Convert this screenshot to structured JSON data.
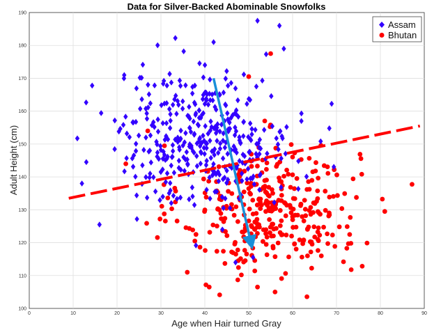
{
  "chart_data": {
    "type": "scatter",
    "title": "Data for Silver-Backed Abominable Snowfolks",
    "xlabel": "Age when Hair turned Gray",
    "ylabel": "Adult Height (cm)",
    "xlim": [
      0,
      90
    ],
    "ylim": [
      100,
      190
    ],
    "xticks": [
      "0",
      "10",
      "20",
      "30",
      "40",
      "50",
      "60",
      "70",
      "80",
      "90"
    ],
    "yticks": [
      "100",
      "110",
      "120",
      "130",
      "140",
      "150",
      "160",
      "170",
      "180",
      "190"
    ],
    "grid": true,
    "legend_position": "top-right",
    "series": [
      {
        "name": "Assam",
        "marker": "diamond",
        "color": "#3300ff",
        "cluster": {
          "x_mean": 40,
          "y_mean": 152,
          "x_sd": 10,
          "y_sd": 10,
          "n": 400
        },
        "points": [
          [
            12,
            138
          ],
          [
            13,
            144.5
          ],
          [
            16,
            125.5
          ],
          [
            52,
            187.5
          ],
          [
            57,
            186
          ],
          [
            58,
            179
          ],
          [
            42,
            181
          ],
          [
            51,
            115.5
          ],
          [
            47,
            114
          ],
          [
            44,
            124
          ],
          [
            62,
            157
          ]
        ]
      },
      {
        "name": "Bhutan",
        "marker": "circle",
        "color": "#ff0000",
        "cluster": {
          "x_mean": 55,
          "y_mean": 130,
          "x_sd": 10,
          "y_sd": 10,
          "n": 350
        },
        "points": [
          [
            81,
            129.5
          ],
          [
            55,
            177.5
          ],
          [
            50,
            170.5
          ],
          [
            52,
            106.5
          ],
          [
            56,
            105
          ],
          [
            41,
            106.5
          ],
          [
            27,
            154
          ],
          [
            73,
            122.5
          ],
          [
            36,
            111
          ],
          [
            22,
            144
          ]
        ]
      }
    ],
    "annotations": [
      {
        "type": "dashed-line",
        "color": "#ff0000",
        "from": [
          9,
          133.5
        ],
        "to": [
          89,
          155.5
        ]
      },
      {
        "type": "arrow",
        "color": "#1a8fd8",
        "from": [
          42,
          170
        ],
        "to": [
          50.5,
          120
        ]
      }
    ]
  }
}
